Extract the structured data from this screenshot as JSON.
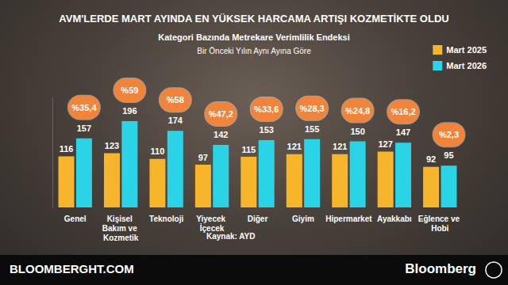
{
  "chart_data": {
    "type": "bar",
    "title": "AVM'LERDE MART AYINDA EN YÜKSEK HARCAMA ARTIŞI KOZMETİKTE OLDU",
    "subtitles": [
      "Kategori Bazında Metrekare Verimlilik Endeksi",
      "Bir Önceki Yılın Aynı Ayına Göre"
    ],
    "categories": [
      "Genel",
      "Kişisel Bakım ve Kozmetik",
      "Teknoloji",
      "Yiyecek İçecek",
      "Diğer",
      "Giyim",
      "Hipermarket",
      "Ayakkabı",
      "Eğlence ve Hobi"
    ],
    "series": [
      {
        "name": "Mart 2025",
        "color": "#f7b52c",
        "values": [
          116,
          123,
          110,
          97,
          115,
          121,
          121,
          127,
          92
        ]
      },
      {
        "name": "Mart 2026",
        "color": "#2bd3e6",
        "values": [
          157,
          196,
          174,
          142,
          153,
          155,
          150,
          147,
          95
        ],
        "annotations": [
          "%35,4",
          "%59",
          "%58",
          "%47,2",
          "%33,6",
          "%28,3",
          "%24,8",
          "%16,2",
          "%2,3"
        ]
      }
    ],
    "ylim": [
      0,
      250
    ],
    "grid": false,
    "tick_labels": "x",
    "legend": "top-right",
    "data_labels": true,
    "source": "Kaynak: AYD",
    "footer": [
      "BLOOMBERGHT.COM",
      "Bloomberg"
    ]
  }
}
